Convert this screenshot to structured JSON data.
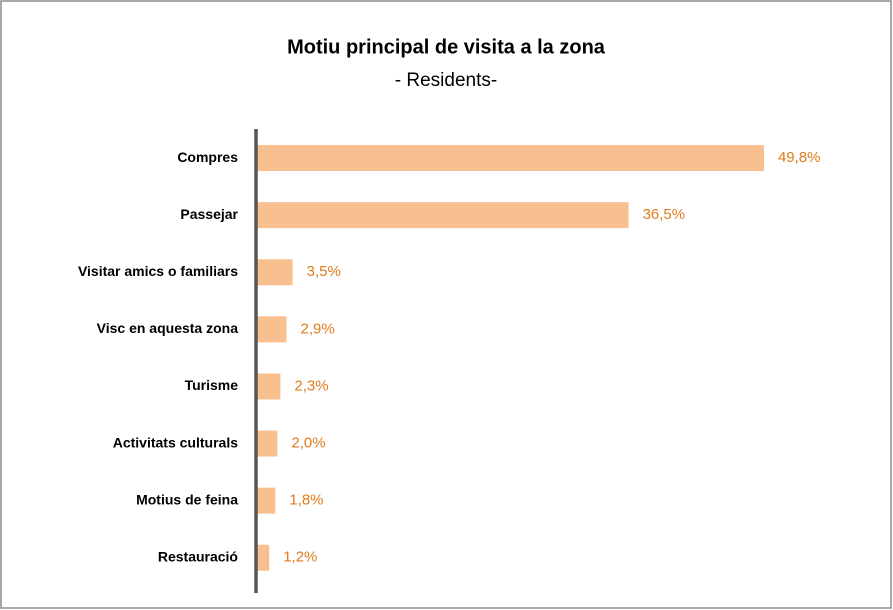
{
  "chart_data": {
    "type": "bar",
    "orientation": "horizontal",
    "title": "Motiu principal de visita a la zona",
    "subtitle": "- Residents-",
    "categories": [
      "Compres",
      "Passejar",
      "Visitar amics o familiars",
      "Visc en aquesta zona",
      "Turisme",
      "Activitats culturals",
      "Motius de feina",
      "Restauració"
    ],
    "values": [
      49.8,
      36.5,
      3.5,
      2.9,
      2.3,
      2.0,
      1.8,
      1.2
    ],
    "value_labels": [
      "49,8%",
      "36,5%",
      "3,5%",
      "2,9%",
      "2,3%",
      "2,0%",
      "1,8%",
      "1,2%"
    ],
    "color": "#f9c08f",
    "label_color": "#e07b1a"
  }
}
